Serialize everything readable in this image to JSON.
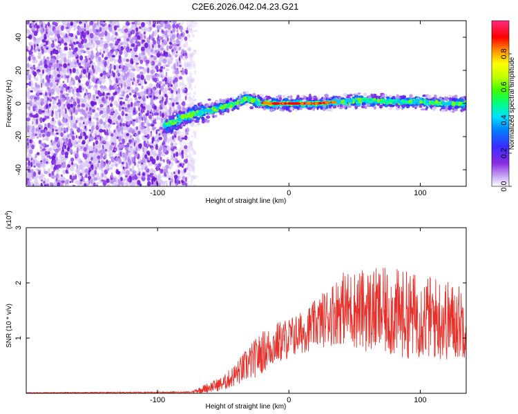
{
  "title": "C2E6.2026.042.04.23.G21",
  "chart_data": [
    {
      "type": "heatmap",
      "title": "C2E6.2026.042.04.23.G21",
      "xlabel": "Height of straight line (km)",
      "ylabel": "Frequency (Hz)",
      "xlim": [
        -200,
        135
      ],
      "ylim": [
        -50,
        50
      ],
      "xticks": [
        -100,
        0,
        100
      ],
      "xtick_labels": [
        "-100",
        "0",
        "100"
      ],
      "yticks": [
        -40,
        -20,
        0,
        20,
        40
      ],
      "ytick_labels": [
        "-40",
        "-20",
        "0",
        "20",
        "40"
      ],
      "colorbar": {
        "label": "Normalized spectral amplitude",
        "range": [
          0,
          1
        ],
        "ticks": [
          0.0,
          0.2,
          0.4,
          0.6,
          0.8
        ],
        "tick_labels": [
          "0.0",
          "0.2",
          "0.4",
          "0.6",
          "0.8"
        ],
        "colormap": "rainbow",
        "colors": [
          "#ffffff",
          "#b388f0",
          "#7b1fe0",
          "#3030ff",
          "#00c8ff",
          "#00ff80",
          "#80ff00",
          "#ffff00",
          "#ff8000",
          "#ff0000",
          "#ff2080"
        ]
      },
      "noise_region_x": [
        -200,
        -77
      ],
      "signal_ridge": {
        "x": [
          -95,
          -80,
          -60,
          -40,
          -32,
          -25,
          -15,
          0,
          20,
          40,
          60,
          80,
          100,
          120,
          135
        ],
        "frequency": [
          -14,
          -8,
          -4,
          0,
          3,
          1,
          0,
          0,
          0,
          1,
          2,
          1,
          1,
          0,
          0
        ]
      }
    },
    {
      "type": "line",
      "xlabel": "Height of straight line (km)",
      "ylabel": "SNR (10 * v/v)",
      "scale_label_prefix": "(x10",
      "scale_label_exponent": "4",
      "scale_label_suffix": ")",
      "xlim": [
        -200,
        135
      ],
      "ylim": [
        0,
        3
      ],
      "xticks": [
        -100,
        0,
        100
      ],
      "xtick_labels": [
        "-100",
        "0",
        "100"
      ],
      "yticks": [
        1,
        2,
        3
      ],
      "ytick_labels": [
        "1",
        "2",
        "3"
      ],
      "series_color": "#e8302a",
      "envelope": {
        "x": [
          -200,
          -75,
          -65,
          -50,
          -40,
          -30,
          -20,
          -10,
          0,
          10,
          20,
          30,
          40,
          60,
          80,
          100,
          115,
          125,
          135
        ],
        "mean": [
          0.01,
          0.02,
          0.08,
          0.18,
          0.35,
          0.55,
          0.75,
          0.9,
          1.0,
          1.1,
          1.25,
          1.4,
          1.55,
          1.5,
          1.45,
          1.4,
          1.35,
          1.3,
          1.3
        ],
        "spread": [
          0.005,
          0.01,
          0.07,
          0.12,
          0.2,
          0.3,
          0.35,
          0.35,
          0.35,
          0.35,
          0.4,
          0.5,
          0.6,
          0.7,
          0.75,
          0.7,
          0.7,
          0.65,
          0.6
        ]
      }
    }
  ]
}
